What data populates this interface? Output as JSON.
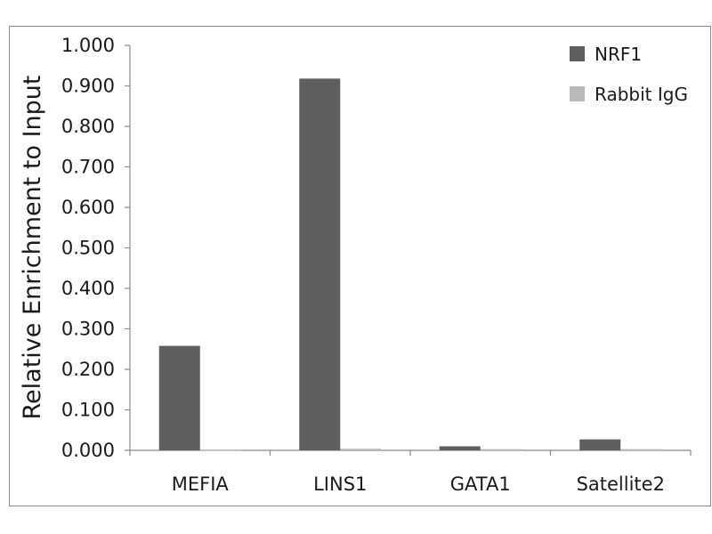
{
  "chart_data": {
    "type": "bar",
    "title": "",
    "xlabel": "",
    "ylabel": "Relative Enrichment to Input",
    "categories": [
      "MEFIA",
      "LINS1",
      "GATA1",
      "Satellite2"
    ],
    "series": [
      {
        "name": "NRF1",
        "values": [
          0.258,
          0.918,
          0.01,
          0.027
        ],
        "color": "#5f5f5f"
      },
      {
        "name": "Rabbit IgG",
        "values": [
          0.002,
          0.004,
          0.003,
          0.003
        ],
        "color": "#b9b9b9"
      }
    ],
    "ylim": [
      0,
      1.0
    ],
    "yticks": [
      "0.000",
      "0.100",
      "0.200",
      "0.300",
      "0.400",
      "0.500",
      "0.600",
      "0.700",
      "0.800",
      "0.900",
      "1.000"
    ],
    "grid": false,
    "legend_position": "top-right"
  }
}
